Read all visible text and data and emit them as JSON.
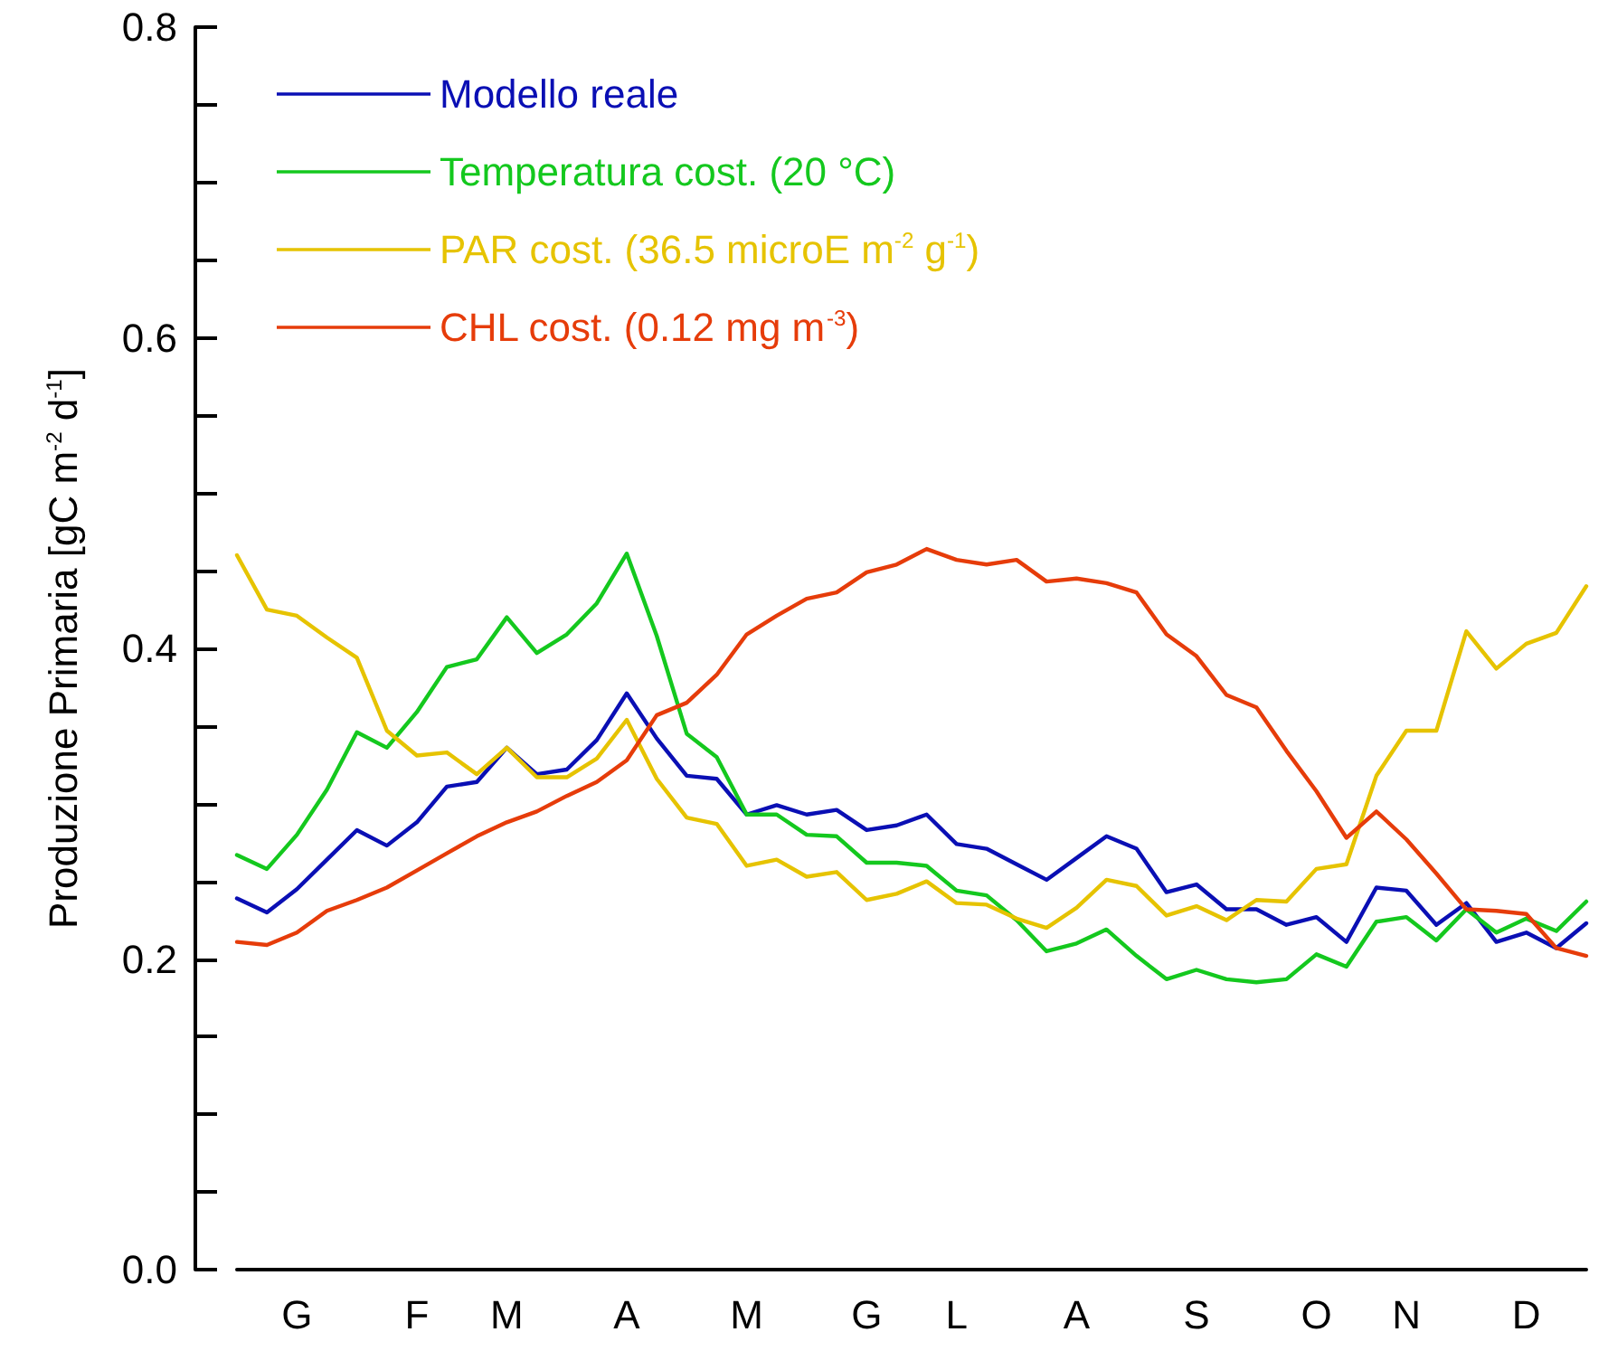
{
  "chart_data": {
    "type": "line",
    "ylabel": "Produzione Primaria [gC m$^{-2}$ d$^{-1}$]",
    "categories": [
      null,
      null,
      "G",
      null,
      null,
      null,
      "F",
      null,
      null,
      "M",
      null,
      null,
      null,
      "A",
      null,
      null,
      null,
      "M",
      null,
      null,
      null,
      "G",
      null,
      null,
      "L",
      null,
      null,
      null,
      "A",
      null,
      null,
      null,
      "S",
      null,
      null,
      null,
      "O",
      null,
      null,
      "N",
      null,
      null,
      null,
      "D",
      null,
      null
    ],
    "series": [
      {
        "name": "Modello reale",
        "color": "#0a0fb4",
        "values": [
          0.239,
          0.23,
          0.245,
          0.264,
          0.283,
          0.273,
          0.288,
          0.311,
          0.314,
          0.336,
          0.319,
          0.322,
          0.341,
          0.371,
          0.342,
          0.318,
          0.316,
          0.293,
          0.299,
          0.293,
          0.296,
          0.283,
          0.286,
          0.293,
          0.274,
          0.271,
          0.261,
          0.251,
          0.265,
          0.279,
          0.271,
          0.243,
          0.248,
          0.232,
          0.232,
          0.222,
          0.227,
          0.211,
          0.246,
          0.244,
          0.222,
          0.236,
          0.211,
          0.217,
          0.207,
          0.223
        ]
      },
      {
        "name": "Temperatura cost. (20 °C)",
        "color": "#14c81e",
        "values": [
          0.267,
          0.258,
          0.28,
          0.309,
          0.346,
          0.336,
          0.359,
          0.388,
          0.393,
          0.42,
          0.397,
          0.409,
          0.429,
          0.461,
          0.408,
          0.345,
          0.33,
          0.293,
          0.293,
          0.28,
          0.279,
          0.262,
          0.262,
          0.26,
          0.244,
          0.241,
          0.225,
          0.205,
          0.21,
          0.219,
          0.202,
          0.187,
          0.193,
          0.187,
          0.185,
          0.187,
          0.203,
          0.195,
          0.224,
          0.227,
          0.212,
          0.232,
          0.217,
          0.226,
          0.218,
          0.237
        ]
      },
      {
        "name": "PAR cost. (36.5 microE m$^{-2}$ g$^{-1}$)",
        "color": "#e6c300",
        "values": [
          0.46,
          0.425,
          0.421,
          0.407,
          0.394,
          0.347,
          0.331,
          0.333,
          0.319,
          0.336,
          0.317,
          0.317,
          0.329,
          0.354,
          0.316,
          0.291,
          0.287,
          0.26,
          0.264,
          0.253,
          0.256,
          0.238,
          0.242,
          0.25,
          0.236,
          0.235,
          0.226,
          0.22,
          0.233,
          0.251,
          0.247,
          0.228,
          0.234,
          0.225,
          0.238,
          0.237,
          0.258,
          0.261,
          0.318,
          0.347,
          0.347,
          0.411,
          0.387,
          0.403,
          0.41,
          0.44
        ]
      },
      {
        "name": "CHL cost. (0.12 mg m$^{-3}$)",
        "color": "#e63c0a",
        "values": [
          0.211,
          0.209,
          0.217,
          0.231,
          0.238,
          0.246,
          0.257,
          0.268,
          0.279,
          0.288,
          0.295,
          0.305,
          0.314,
          0.328,
          0.357,
          0.365,
          0.383,
          0.409,
          0.421,
          0.432,
          0.436,
          0.449,
          0.454,
          0.464,
          0.457,
          0.454,
          0.457,
          0.443,
          0.445,
          0.442,
          0.436,
          0.409,
          0.395,
          0.37,
          0.362,
          0.334,
          0.308,
          0.278,
          0.295,
          0.277,
          0.255,
          0.232,
          0.231,
          0.229,
          0.207,
          0.202
        ]
      }
    ],
    "ylim": [
      0,
      0.8
    ],
    "yticks": [
      {
        "value": 0,
        "label": "0.0"
      },
      {
        "value": 0.05,
        "label": null
      },
      {
        "value": 0.1,
        "label": null
      },
      {
        "value": 0.15,
        "label": null
      },
      {
        "value": 0.2,
        "label": "0.2"
      },
      {
        "value": 0.25,
        "label": null
      },
      {
        "value": 0.3,
        "label": null
      },
      {
        "value": 0.35,
        "label": null
      },
      {
        "value": 0.4,
        "label": "0.4"
      },
      {
        "value": 0.45,
        "label": null
      },
      {
        "value": 0.5,
        "label": null
      },
      {
        "value": 0.55,
        "label": null
      },
      {
        "value": 0.6,
        "label": "0.6"
      },
      {
        "value": 0.65,
        "label": null
      },
      {
        "value": 0.7,
        "label": null
      },
      {
        "value": 0.75,
        "label": null
      },
      {
        "value": 0.8,
        "label": "0.8"
      }
    ],
    "grid": false,
    "legend": "top left",
    "marker": "none",
    "line_style": "solid"
  }
}
